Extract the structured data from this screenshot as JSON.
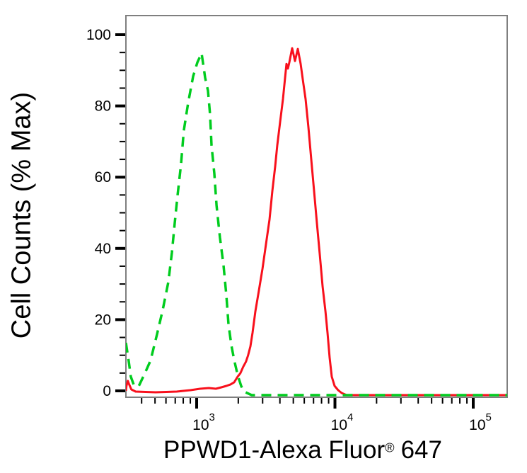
{
  "figure": {
    "background": "#ffffff",
    "ylabel": "Cell Counts (% Max)",
    "xlabel_main": "PPWD1-Alexa Fluor",
    "xlabel_reg": "®",
    "xlabel_suffix": "647"
  },
  "chart_data": {
    "type": "line",
    "subtype": "flow-cytometry-histogram-overlay",
    "title": "",
    "xlabel": "PPWD1-Alexa Fluor® 647",
    "ylabel": "Cell Counts (% Max)",
    "x_scale": "log",
    "x_range": [
      310,
      176000
    ],
    "y_range": [
      0,
      100
    ],
    "x_major_ticks": [
      1000,
      10000,
      100000
    ],
    "x_major_tick_labels": [
      "10^3",
      "10^4",
      "10^5"
    ],
    "y_major_ticks": [
      0,
      20,
      40,
      60,
      80,
      100
    ],
    "y_minor_tick_step": 5,
    "grid": false,
    "legend_position": "none",
    "frame_color": "#7f7f7f",
    "tick_color": "#000000",
    "series": [
      {
        "name": "control-green-dashed",
        "style": "dashed",
        "color": "#00cc1e",
        "peak_x": 1090,
        "peak_y": 95,
        "points": [
          [
            308,
            13.5
          ],
          [
            323,
            8.3
          ],
          [
            334,
            4.0
          ],
          [
            350,
            1.8
          ],
          [
            380,
            1.2
          ],
          [
            423,
            5.0
          ],
          [
            464,
            8.5
          ],
          [
            517,
            15.9
          ],
          [
            568,
            22.7
          ],
          [
            624,
            30.6
          ],
          [
            662,
            38.8
          ],
          [
            694,
            47.1
          ],
          [
            727,
            54.7
          ],
          [
            771,
            63.6
          ],
          [
            807,
            73.0
          ],
          [
            868,
            80.9
          ],
          [
            943,
            88.3
          ],
          [
            1012,
            92.2
          ],
          [
            1086,
            94.8
          ],
          [
            1152,
            87.9
          ],
          [
            1208,
            84.3
          ],
          [
            1251,
            77.5
          ],
          [
            1281,
            69.0
          ],
          [
            1342,
            61.0
          ],
          [
            1392,
            52.1
          ],
          [
            1474,
            43.1
          ],
          [
            1564,
            35.2
          ],
          [
            1639,
            26.8
          ],
          [
            1698,
            18.7
          ],
          [
            1781,
            12.9
          ],
          [
            1866,
            8.7
          ],
          [
            1979,
            4.4
          ],
          [
            2097,
            1.4
          ],
          [
            2200,
            -0.2
          ],
          [
            2500,
            -1.2
          ],
          [
            176000,
            -1.2
          ]
        ]
      },
      {
        "name": "ppwd1-red-solid",
        "style": "solid",
        "color": "#f8101c",
        "peak_x": 4900,
        "peak_y": 96,
        "points": [
          [
            308,
            0
          ],
          [
            311,
            1.4
          ],
          [
            318,
            2.8
          ],
          [
            325,
            1.8
          ],
          [
            337,
            0.4
          ],
          [
            362,
            -0.2
          ],
          [
            505,
            -0.4
          ],
          [
            717,
            -0.2
          ],
          [
            903,
            0.2
          ],
          [
            1060,
            0.6
          ],
          [
            1225,
            0.8
          ],
          [
            1377,
            0.6
          ],
          [
            1509,
            1.0
          ],
          [
            1639,
            1.4
          ],
          [
            1759,
            1.8
          ],
          [
            1866,
            2.4
          ],
          [
            1979,
            4.0
          ],
          [
            2073,
            5.0
          ],
          [
            2172,
            6.8
          ],
          [
            2272,
            8.2
          ],
          [
            2352,
            9.9
          ],
          [
            2447,
            12.5
          ],
          [
            2535,
            16.3
          ],
          [
            2658,
            22.3
          ],
          [
            2819,
            28.2
          ],
          [
            2990,
            34.2
          ],
          [
            3171,
            41.2
          ],
          [
            3364,
            48.1
          ],
          [
            3525,
            56.1
          ],
          [
            3698,
            63.0
          ],
          [
            3828,
            69.0
          ],
          [
            4014,
            75.5
          ],
          [
            4209,
            81.9
          ],
          [
            4360,
            87.9
          ],
          [
            4464,
            91.8
          ],
          [
            4570,
            90.5
          ],
          [
            4678,
            92.2
          ],
          [
            4905,
            96.2
          ],
          [
            5142,
            92.6
          ],
          [
            5390,
            96.0
          ],
          [
            5650,
            91.8
          ],
          [
            5849,
            87.5
          ],
          [
            6133,
            81.9
          ],
          [
            6430,
            74.0
          ],
          [
            6742,
            65.0
          ],
          [
            7068,
            56.1
          ],
          [
            7410,
            47.1
          ],
          [
            7768,
            38.2
          ],
          [
            8144,
            29.2
          ],
          [
            8538,
            22.3
          ],
          [
            8841,
            16.3
          ],
          [
            9155,
            9.3
          ],
          [
            9480,
            4.0
          ],
          [
            9936,
            1.4
          ],
          [
            10540,
            0.2
          ],
          [
            11190,
            -0.6
          ],
          [
            12140,
            -1.2
          ],
          [
            176000,
            -1.2
          ]
        ]
      }
    ]
  }
}
